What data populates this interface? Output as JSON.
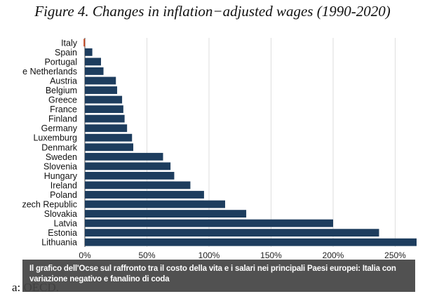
{
  "chart_data": {
    "type": "bar",
    "orientation": "horizontal",
    "title": "Figure 4. Changes in inflation−adjusted wages (1990-2020)",
    "categories": [
      "Italy",
      "Spain",
      "Portugal",
      "e Netherlands",
      "Austria",
      "Belgium",
      "Greece",
      "France",
      "Finland",
      "Germany",
      "Luxemburg",
      "Denmark",
      "Sweden",
      "Slovenia",
      "Hungary",
      "Ireland",
      "Poland",
      "zech Republic",
      "Slovakia",
      "Latvia",
      "Estonia",
      "Lithuania"
    ],
    "values": [
      -1,
      6,
      13,
      15,
      25,
      26,
      30,
      31,
      32,
      34,
      38,
      39,
      63,
      69,
      72,
      85,
      96,
      113,
      130,
      200,
      237,
      276
    ],
    "xlim": [
      0,
      265
    ],
    "xticks": [
      0,
      50,
      100,
      150,
      200,
      250
    ],
    "xtick_labels": [
      "0%",
      "50%",
      "100%",
      "150%",
      "200%",
      "250%"
    ],
    "grid": true,
    "colors": {
      "positive": "#1d3d5e",
      "negative": "#c0441f",
      "grid": "#dedede"
    }
  },
  "source": "a: OECD.",
  "caption": "Il grafico dell'Ocse sul raffronto tra il costo della vita e i salari nei principali Paesi europei: Italia con variazione negativo e fanalino di coda"
}
